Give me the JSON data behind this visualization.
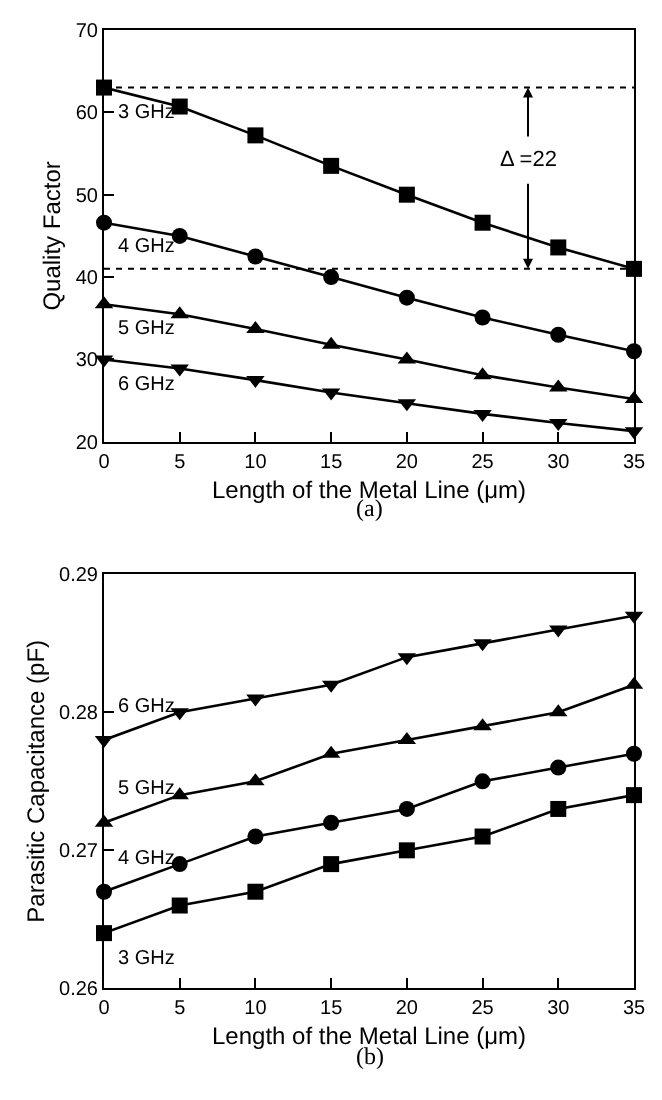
{
  "chart_data": [
    {
      "type": "line",
      "xlabel": "Length of the Metal Line (μm)",
      "ylabel": "Quality Factor",
      "x": [
        0,
        5,
        10,
        15,
        20,
        25,
        30,
        35
      ],
      "xlim": [
        0,
        35
      ],
      "xticks": [
        0,
        5,
        10,
        15,
        20,
        25,
        30,
        35
      ],
      "ylim": [
        20,
        70
      ],
      "yticks": [
        20,
        30,
        40,
        50,
        60,
        70
      ],
      "line_style": "solid",
      "series": [
        {
          "name": "3 GHz",
          "color": "#000000",
          "marker": "square",
          "values": [
            63,
            60.7,
            57.2,
            53.5,
            50,
            46.6,
            43.6,
            41
          ]
        },
        {
          "name": "4 GHz",
          "color": "#000000",
          "marker": "circle",
          "values": [
            46.6,
            45,
            42.5,
            40,
            37.5,
            35.1,
            33,
            31
          ]
        },
        {
          "name": "5 GHz",
          "color": "#000000",
          "marker": "triangle",
          "values": [
            36.7,
            35.5,
            33.7,
            31.8,
            30,
            28.1,
            26.6,
            25.2
          ]
        },
        {
          "name": "6 GHz",
          "color": "#000000",
          "marker": "triangle-down",
          "values": [
            30,
            28.9,
            27.5,
            26,
            24.7,
            23.4,
            22.3,
            21.3
          ]
        }
      ],
      "ref_lines": [
        {
          "axis": "y",
          "value": 63,
          "label": null,
          "line_style": "dotted",
          "color": "#000000"
        },
        {
          "axis": "y",
          "value": 41,
          "label": null,
          "line_style": "dotted",
          "color": "#000000"
        }
      ],
      "annotations": [
        {
          "text": "Δ =22",
          "x": 28,
          "y": 63
        },
        "(a)"
      ]
    },
    {
      "type": "line",
      "xlabel": "Length of the Metal Line (μm)",
      "ylabel": "Parasitic Capacitance (pF)",
      "x": [
        0,
        5,
        10,
        15,
        20,
        25,
        30,
        35
      ],
      "xlim": [
        0,
        35
      ],
      "xticks": [
        0,
        5,
        10,
        15,
        20,
        25,
        30,
        35
      ],
      "ylim": [
        0.26,
        0.29
      ],
      "yticks": [
        0.26,
        0.27,
        0.28,
        0.29
      ],
      "line_style": "solid",
      "series": [
        {
          "name": "6 GHz",
          "color": "#000000",
          "marker": "triangle-down",
          "values": [
            0.278,
            0.28,
            0.281,
            0.282,
            0.284,
            0.285,
            0.286,
            0.287
          ]
        },
        {
          "name": "5 GHz",
          "color": "#000000",
          "marker": "triangle",
          "values": [
            0.272,
            0.274,
            0.275,
            0.277,
            0.278,
            0.279,
            0.28,
            0.282
          ]
        },
        {
          "name": "4 GHz",
          "color": "#000000",
          "marker": "circle",
          "values": [
            0.267,
            0.269,
            0.271,
            0.272,
            0.273,
            0.275,
            0.276,
            0.277
          ]
        },
        {
          "name": "3 GHz",
          "color": "#000000",
          "marker": "square",
          "values": [
            0.264,
            0.266,
            0.267,
            0.269,
            0.27,
            0.271,
            0.273,
            0.274
          ]
        }
      ],
      "annotations": [
        "(b)"
      ]
    }
  ]
}
